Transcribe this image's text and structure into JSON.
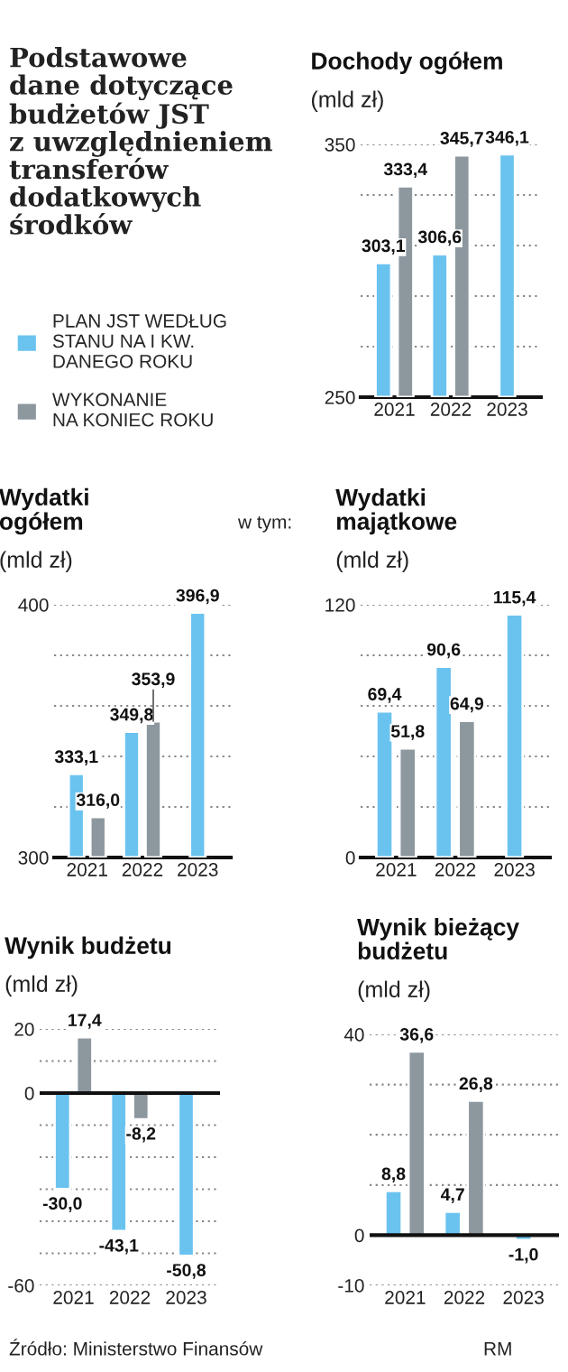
{
  "chart_data": [
    {
      "type": "other",
      "title": "Podstawowe\ndane dotyczące\nbudżetów JST\nz uwzględnieniem\ntransferów\ndodatkowych\nśrodków"
    },
    {
      "type": "bar",
      "title": "Dochody ogółem",
      "subtitle": "(mld zł)",
      "categories": [
        "2021",
        "2022",
        "2023"
      ],
      "series": [
        {
          "name": "PLAN JST WEDŁUG\nSTANU NA I KW.\nDANEGO ROKU",
          "color": "#6ac3ef",
          "values": [
            303.1,
            306.6,
            346.1
          ],
          "value_labels": [
            "303,1",
            "306,6",
            "346,1"
          ]
        },
        {
          "name": "WYKONANIE\nNA KONIEC ROKU",
          "color": "#8c979e",
          "values": [
            333.4,
            345.7,
            null
          ],
          "value_labels": [
            "333,4",
            "345,7",
            null
          ]
        }
      ],
      "ylim": [
        250,
        350
      ],
      "yticks": [
        250,
        {
          "value": 270,
          "label": null
        },
        {
          "value": 290,
          "label": null
        },
        {
          "value": 310,
          "label": null
        },
        {
          "value": 330,
          "label": null
        },
        350
      ],
      "grid": "y",
      "legend": "left"
    },
    {
      "type": "bar",
      "title": "Wydatki\nogółem",
      "subtitle": "(mld zł)",
      "categories": [
        "2021",
        "2022",
        "2023"
      ],
      "series": [
        {
          "color": "#6ac3ef",
          "values": [
            333.1,
            349.8,
            396.9
          ],
          "value_labels": [
            "333,1",
            "349,8",
            "396,9"
          ]
        },
        {
          "color": "#8c979e",
          "values": [
            316.0,
            353.9,
            null
          ],
          "value_labels": [
            "316,0",
            "353,9",
            null
          ]
        }
      ],
      "ylim": [
        300,
        400
      ],
      "yticks": [
        300,
        {
          "value": 320,
          "label": null
        },
        {
          "value": 340,
          "label": null
        },
        {
          "value": 360,
          "label": null
        },
        {
          "value": 380,
          "label": null
        },
        400
      ],
      "grid": "y",
      "annotations": [
        "w tym:"
      ]
    },
    {
      "type": "bar",
      "title": "Wydatki\nmajątkowe",
      "subtitle": "(mld zł)",
      "categories": [
        "2021",
        "2022",
        "2023"
      ],
      "series": [
        {
          "color": "#6ac3ef",
          "values": [
            69.4,
            90.6,
            115.4
          ],
          "value_labels": [
            "69,4",
            "90,6",
            "115,4"
          ]
        },
        {
          "color": "#8c979e",
          "values": [
            51.8,
            64.9,
            null
          ],
          "value_labels": [
            "51,8",
            "64,9",
            null
          ]
        }
      ],
      "ylim": [
        0,
        120
      ],
      "yticks": [
        0,
        {
          "value": 24,
          "label": null
        },
        {
          "value": 48,
          "label": null
        },
        {
          "value": 72,
          "label": null
        },
        {
          "value": 96,
          "label": null
        },
        120
      ],
      "grid": "y"
    },
    {
      "type": "bar",
      "title": "Wynik budżetu",
      "subtitle": "(mld zł)",
      "categories": [
        "2021",
        "2022",
        "2023"
      ],
      "series": [
        {
          "color": "#6ac3ef",
          "values": [
            -30.0,
            -43.1,
            -50.8
          ],
          "value_labels": [
            "-30,0",
            "-43,1",
            "-50,8"
          ]
        },
        {
          "color": "#8c979e",
          "values": [
            17.4,
            -8.2,
            null
          ],
          "value_labels": [
            "17,4",
            "-8,2",
            null
          ]
        }
      ],
      "ylim": [
        -60,
        20
      ],
      "yticks": [
        -60,
        {
          "value": -50,
          "label": null
        },
        {
          "value": -40,
          "label": null
        },
        {
          "value": -30,
          "label": null
        },
        {
          "value": -20,
          "label": null
        },
        {
          "value": -10,
          "label": null
        },
        0,
        {
          "value": 10,
          "label": null
        },
        20
      ],
      "grid": "y"
    },
    {
      "type": "bar",
      "title": "Wynik bieżący\nbudżetu",
      "subtitle": "(mld zł)",
      "categories": [
        "2021",
        "2022",
        "2023"
      ],
      "series": [
        {
          "color": "#6ac3ef",
          "values": [
            8.8,
            4.7,
            -1.0
          ],
          "value_labels": [
            "8,8",
            "4,7",
            "-1,0"
          ]
        },
        {
          "color": "#8c979e",
          "values": [
            36.6,
            26.8,
            null
          ],
          "value_labels": [
            "36,6",
            "26,8",
            null
          ]
        }
      ],
      "ylim": [
        -10,
        40
      ],
      "yticks": [
        -10,
        0,
        {
          "value": 10,
          "label": null
        },
        {
          "value": 20,
          "label": null
        },
        {
          "value": 30,
          "label": null
        },
        40
      ],
      "grid": "y",
      "annotations": [
        "Źródło: Ministerstwo Finansów",
        "RM"
      ]
    }
  ]
}
